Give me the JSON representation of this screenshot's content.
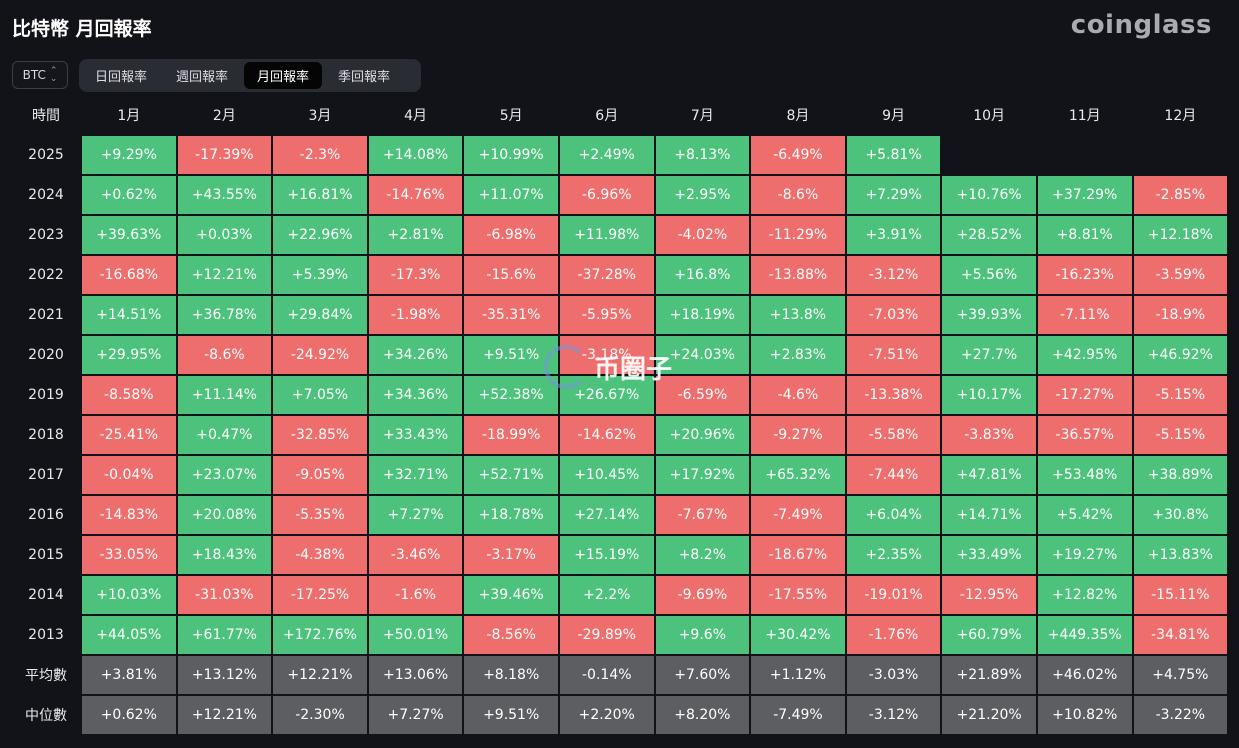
{
  "header": {
    "title": "比特幣 月回報率",
    "brand": "coinglass"
  },
  "coin_select": {
    "value": "BTC"
  },
  "tabs": [
    {
      "label": "日回報率",
      "active": false
    },
    {
      "label": "週回報率",
      "active": false
    },
    {
      "label": "月回報率",
      "active": true
    },
    {
      "label": "季回報率",
      "active": false
    }
  ],
  "watermark": {
    "text": "币圈子"
  },
  "table": {
    "corner_label": "時間",
    "months": [
      "1月",
      "2月",
      "3月",
      "4月",
      "5月",
      "6月",
      "7月",
      "8月",
      "9月",
      "10月",
      "11月",
      "12月"
    ],
    "rows": [
      {
        "year": "2025",
        "values": [
          "+9.29%",
          "-17.39%",
          "-2.3%",
          "+14.08%",
          "+10.99%",
          "+2.49%",
          "+8.13%",
          "-6.49%",
          "+5.81%",
          "",
          "",
          ""
        ]
      },
      {
        "year": "2024",
        "values": [
          "+0.62%",
          "+43.55%",
          "+16.81%",
          "-14.76%",
          "+11.07%",
          "-6.96%",
          "+2.95%",
          "-8.6%",
          "+7.29%",
          "+10.76%",
          "+37.29%",
          "-2.85%"
        ]
      },
      {
        "year": "2023",
        "values": [
          "+39.63%",
          "+0.03%",
          "+22.96%",
          "+2.81%",
          "-6.98%",
          "+11.98%",
          "-4.02%",
          "-11.29%",
          "+3.91%",
          "+28.52%",
          "+8.81%",
          "+12.18%"
        ]
      },
      {
        "year": "2022",
        "values": [
          "-16.68%",
          "+12.21%",
          "+5.39%",
          "-17.3%",
          "-15.6%",
          "-37.28%",
          "+16.8%",
          "-13.88%",
          "-3.12%",
          "+5.56%",
          "-16.23%",
          "-3.59%"
        ]
      },
      {
        "year": "2021",
        "values": [
          "+14.51%",
          "+36.78%",
          "+29.84%",
          "-1.98%",
          "-35.31%",
          "-5.95%",
          "+18.19%",
          "+13.8%",
          "-7.03%",
          "+39.93%",
          "-7.11%",
          "-18.9%"
        ]
      },
      {
        "year": "2020",
        "values": [
          "+29.95%",
          "-8.6%",
          "-24.92%",
          "+34.26%",
          "+9.51%",
          "-3.18%",
          "+24.03%",
          "+2.83%",
          "-7.51%",
          "+27.7%",
          "+42.95%",
          "+46.92%"
        ]
      },
      {
        "year": "2019",
        "values": [
          "-8.58%",
          "+11.14%",
          "+7.05%",
          "+34.36%",
          "+52.38%",
          "+26.67%",
          "-6.59%",
          "-4.6%",
          "-13.38%",
          "+10.17%",
          "-17.27%",
          "-5.15%"
        ]
      },
      {
        "year": "2018",
        "values": [
          "-25.41%",
          "+0.47%",
          "-32.85%",
          "+33.43%",
          "-18.99%",
          "-14.62%",
          "+20.96%",
          "-9.27%",
          "-5.58%",
          "-3.83%",
          "-36.57%",
          "-5.15%"
        ]
      },
      {
        "year": "2017",
        "values": [
          "-0.04%",
          "+23.07%",
          "-9.05%",
          "+32.71%",
          "+52.71%",
          "+10.45%",
          "+17.92%",
          "+65.32%",
          "-7.44%",
          "+47.81%",
          "+53.48%",
          "+38.89%"
        ]
      },
      {
        "year": "2016",
        "values": [
          "-14.83%",
          "+20.08%",
          "-5.35%",
          "+7.27%",
          "+18.78%",
          "+27.14%",
          "-7.67%",
          "-7.49%",
          "+6.04%",
          "+14.71%",
          "+5.42%",
          "+30.8%"
        ]
      },
      {
        "year": "2015",
        "values": [
          "-33.05%",
          "+18.43%",
          "-4.38%",
          "-3.46%",
          "-3.17%",
          "+15.19%",
          "+8.2%",
          "-18.67%",
          "+2.35%",
          "+33.49%",
          "+19.27%",
          "+13.83%"
        ]
      },
      {
        "year": "2014",
        "values": [
          "+10.03%",
          "-31.03%",
          "-17.25%",
          "-1.6%",
          "+39.46%",
          "+2.2%",
          "-9.69%",
          "-17.55%",
          "-19.01%",
          "-12.95%",
          "+12.82%",
          "-15.11%"
        ]
      },
      {
        "year": "2013",
        "values": [
          "+44.05%",
          "+61.77%",
          "+172.76%",
          "+50.01%",
          "-8.56%",
          "-29.89%",
          "+9.6%",
          "+30.42%",
          "-1.76%",
          "+60.79%",
          "+449.35%",
          "-34.81%"
        ]
      }
    ],
    "stats": [
      {
        "label": "平均數",
        "values": [
          "+3.81%",
          "+13.12%",
          "+12.21%",
          "+13.06%",
          "+8.18%",
          "-0.14%",
          "+7.60%",
          "+1.12%",
          "-3.03%",
          "+21.89%",
          "+46.02%",
          "+4.75%"
        ]
      },
      {
        "label": "中位數",
        "values": [
          "+0.62%",
          "+12.21%",
          "-2.30%",
          "+7.27%",
          "+9.51%",
          "+2.20%",
          "+8.20%",
          "-7.49%",
          "-3.12%",
          "+21.20%",
          "+10.82%",
          "-3.22%"
        ]
      }
    ]
  },
  "colors": {
    "positive": "#4dc27c",
    "negative": "#ee6e6d",
    "stat": "#5d5e62",
    "background": "#121318"
  }
}
